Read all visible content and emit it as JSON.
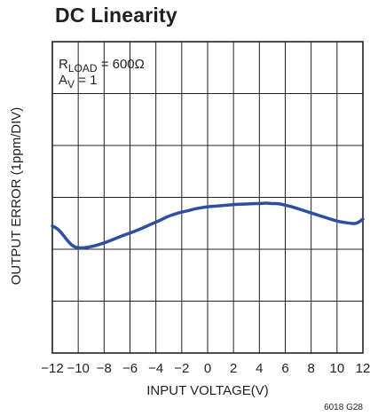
{
  "chart_data": {
    "type": "line",
    "title": "DC Linearity",
    "xlabel": "INPUT VOLTAGE(V)",
    "ylabel": "OUTPUT ERROR (1ppm/DIV)",
    "xlim": [
      -12,
      12
    ],
    "ylim": [
      -3,
      3
    ],
    "x_ticks": [
      -12,
      -10,
      -8,
      -6,
      -4,
      -2,
      0,
      2,
      4,
      6,
      8,
      10,
      12
    ],
    "x_tick_labels": [
      "−12",
      "−10",
      "−8",
      "−6",
      "−4",
      "−2",
      "0",
      "2",
      "4",
      "6",
      "8",
      "10",
      "12"
    ],
    "y_divisions": 6,
    "grid": true,
    "annotation": {
      "r_main": "R",
      "r_sub": "LOAD",
      "r_rest": " = 600Ω",
      "a_main": "A",
      "a_sub": "V",
      "a_rest": " = 1"
    },
    "figure_code": "6018 G28",
    "series": [
      {
        "color": "#2e4ea3",
        "x": [
          -12.0,
          -11.5,
          -11.0,
          -10.5,
          -10.0,
          -9.5,
          -9.0,
          -8.5,
          -8.0,
          -7.5,
          -7.0,
          -6.5,
          -6.0,
          -5.5,
          -5.0,
          -4.5,
          -4.0,
          -3.5,
          -3.0,
          -2.5,
          -2.0,
          -1.5,
          -1.0,
          -0.5,
          0.0,
          0.5,
          1.0,
          1.5,
          2.0,
          2.5,
          3.0,
          3.5,
          4.0,
          4.5,
          5.0,
          5.5,
          6.0,
          6.5,
          7.0,
          7.5,
          8.0,
          8.5,
          9.0,
          9.5,
          10.0,
          10.5,
          11.0,
          11.5,
          12.0
        ],
        "y": [
          -0.55,
          -0.62,
          -0.78,
          -0.93,
          -0.98,
          -0.97,
          -0.95,
          -0.92,
          -0.88,
          -0.83,
          -0.78,
          -0.73,
          -0.69,
          -0.64,
          -0.59,
          -0.53,
          -0.48,
          -0.42,
          -0.36,
          -0.32,
          -0.28,
          -0.26,
          -0.22,
          -0.2,
          -0.18,
          -0.17,
          -0.16,
          -0.15,
          -0.14,
          -0.13,
          -0.13,
          -0.12,
          -0.12,
          -0.11,
          -0.12,
          -0.12,
          -0.15,
          -0.18,
          -0.22,
          -0.26,
          -0.3,
          -0.34,
          -0.38,
          -0.42,
          -0.46,
          -0.48,
          -0.5,
          -0.51,
          -0.42
        ]
      }
    ]
  }
}
